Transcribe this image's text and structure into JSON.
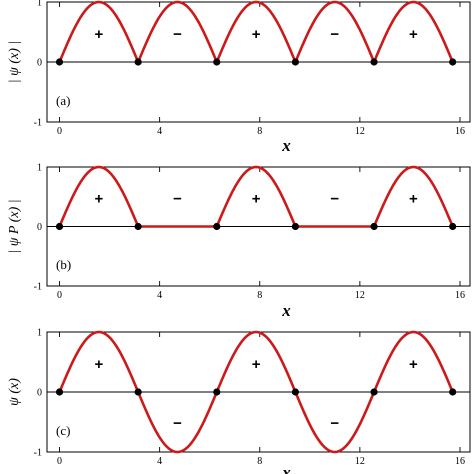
{
  "chart_data": [
    {
      "type": "line",
      "panel_label": "(a)",
      "ylabel": "| ψ (x) |",
      "xlabel": "x",
      "xticks": [
        0,
        4,
        8,
        12,
        16
      ],
      "yticks": [
        -1,
        0,
        1
      ],
      "xlim": [
        -0.5,
        16.4
      ],
      "ylim": [
        -1,
        1
      ],
      "series": [
        {
          "function": "abs_sin",
          "x_range": [
            0,
            15.708
          ],
          "color": "#cc1a1a"
        }
      ],
      "nodes": [
        0,
        3.1416,
        6.2832,
        9.4248,
        12.5664,
        15.708
      ],
      "signs": [
        {
          "text": "+",
          "x": 1.5708,
          "y": 0.47
        },
        {
          "text": "−",
          "x": 4.7124,
          "y": 0.47
        },
        {
          "text": "+",
          "x": 7.854,
          "y": 0.47
        },
        {
          "text": "−",
          "x": 10.9956,
          "y": 0.47
        },
        {
          "text": "+",
          "x": 14.1372,
          "y": 0.47
        }
      ]
    },
    {
      "type": "line",
      "panel_label": "(b)",
      "ylabel": "| ψ P (x) |",
      "xlabel": "x",
      "xticks": [
        0,
        4,
        8,
        12,
        16
      ],
      "yticks": [
        -1,
        0,
        1
      ],
      "xlim": [
        -0.5,
        16.4
      ],
      "ylim": [
        -1,
        1
      ],
      "series": [
        {
          "function": "pos_sin",
          "x_range": [
            0,
            15.708
          ],
          "color": "#cc1a1a"
        }
      ],
      "nodes": [
        0,
        3.1416,
        6.2832,
        9.4248,
        12.5664,
        15.708
      ],
      "signs": [
        {
          "text": "+",
          "x": 1.5708,
          "y": 0.47
        },
        {
          "text": "−",
          "x": 4.7124,
          "y": 0.47
        },
        {
          "text": "+",
          "x": 7.854,
          "y": 0.47
        },
        {
          "text": "−",
          "x": 10.9956,
          "y": 0.47
        },
        {
          "text": "+",
          "x": 14.1372,
          "y": 0.47
        }
      ]
    },
    {
      "type": "line",
      "panel_label": "(c)",
      "ylabel": "ψ (x)",
      "xlabel": "x",
      "xticks": [
        0,
        4,
        8,
        12,
        16
      ],
      "yticks": [
        -1,
        0,
        1
      ],
      "xlim": [
        -0.5,
        16.4
      ],
      "ylim": [
        -1,
        1
      ],
      "series": [
        {
          "function": "sin",
          "x_range": [
            0,
            15.708
          ],
          "color": "#cc1a1a"
        }
      ],
      "nodes": [
        0,
        3.1416,
        6.2832,
        9.4248,
        12.5664,
        15.708
      ],
      "signs": [
        {
          "text": "+",
          "x": 1.5708,
          "y": 0.47
        },
        {
          "text": "−",
          "x": 4.7124,
          "y": -0.52
        },
        {
          "text": "+",
          "x": 7.854,
          "y": 0.47
        },
        {
          "text": "−",
          "x": 10.9956,
          "y": -0.52
        },
        {
          "text": "+",
          "x": 14.1372,
          "y": 0.47
        }
      ]
    }
  ]
}
